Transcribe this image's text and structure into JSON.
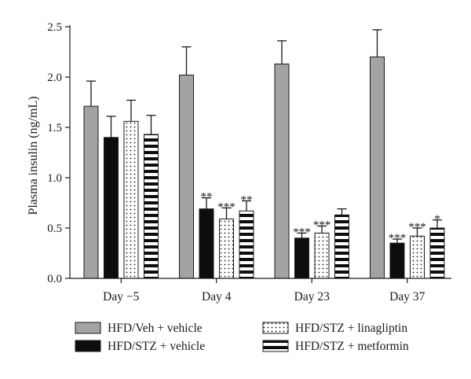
{
  "chart_data": {
    "type": "bar",
    "title": "",
    "xlabel": "",
    "ylabel": "Plasma insulin (ng/mL)",
    "ylim": [
      0,
      2.5
    ],
    "yticks": [
      "0.0",
      "0.5",
      "1.0",
      "1.5",
      "2.0",
      "2.5"
    ],
    "categories": [
      "Day −5",
      "Day 4",
      "Day 23",
      "Day 37"
    ],
    "legend_position": "bottom",
    "series": [
      {
        "name": "HFD/Veh + vehicle",
        "pattern": "gray",
        "values": [
          1.71,
          2.02,
          2.13,
          2.2
        ],
        "errors": [
          0.25,
          0.28,
          0.23,
          0.27
        ],
        "significance": [
          "",
          "",
          "",
          ""
        ]
      },
      {
        "name": "HFD/STZ + vehicle",
        "pattern": "black",
        "values": [
          1.4,
          0.69,
          0.4,
          0.35
        ],
        "errors": [
          0.21,
          0.11,
          0.05,
          0.04
        ],
        "significance": [
          "",
          "**",
          "***",
          "***"
        ]
      },
      {
        "name": "HFD/STZ + linagliptin",
        "pattern": "dots",
        "values": [
          1.56,
          0.59,
          0.45,
          0.42
        ],
        "errors": [
          0.21,
          0.11,
          0.07,
          0.08
        ],
        "significance": [
          "",
          "***",
          "***",
          "***"
        ]
      },
      {
        "name": "HFD/STZ + metformin",
        "pattern": "stripes",
        "values": [
          1.43,
          0.67,
          0.63,
          0.5
        ],
        "errors": [
          0.19,
          0.1,
          0.06,
          0.08
        ],
        "significance": [
          "",
          "**",
          "",
          "*"
        ]
      }
    ],
    "colors": {
      "gray": "#a3a3a3",
      "black": "#0d0d0d",
      "outline": "#1a1a1a"
    }
  }
}
